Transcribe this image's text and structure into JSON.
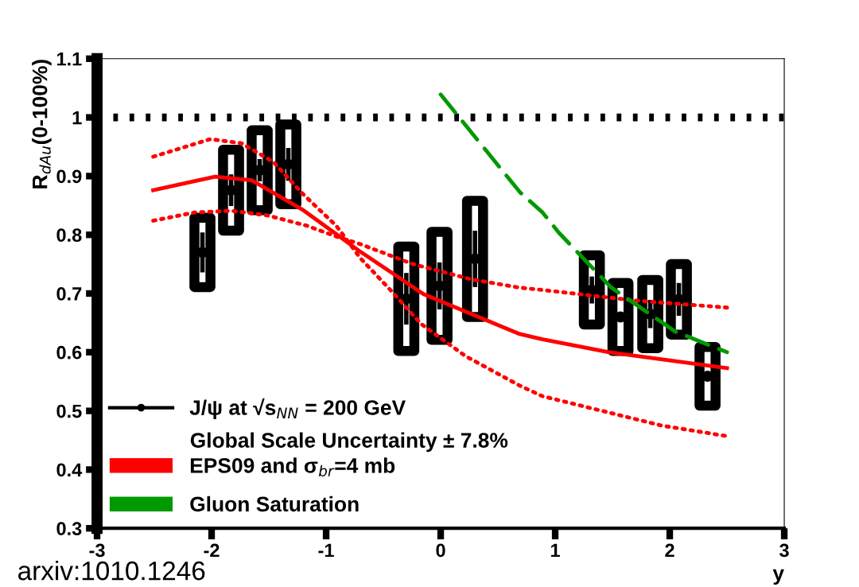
{
  "chart_data": {
    "type": "scatter",
    "xlabel": "y",
    "ylabel": "R$_{dAu}$(0-100%)",
    "xlim": [
      -3,
      3
    ],
    "ylim": [
      0.3,
      1.1
    ],
    "xticks": [
      -3,
      -2,
      -1,
      0,
      1,
      2,
      3
    ],
    "yticks": [
      0.3,
      0.4,
      0.5,
      0.6,
      0.7,
      0.8,
      0.9,
      1,
      1.1
    ],
    "grid": false,
    "legend": "bottom left",
    "series": [
      {
        "type": "bar",
        "color": "#000000",
        "x": [
          -2.08,
          -1.83,
          -1.58,
          -1.33,
          -0.3,
          -0.01,
          0.3,
          1.32,
          1.57,
          1.83,
          2.08,
          2.33
        ],
        "base": [
          0.711,
          0.807,
          0.842,
          0.852,
          0.602,
          0.621,
          0.66,
          0.647,
          0.602,
          0.607,
          0.63,
          0.509
        ],
        "values": [
          0.118,
          0.138,
          0.136,
          0.136,
          0.178,
          0.184,
          0.198,
          0.118,
          0.116,
          0.116,
          0.12,
          0.1
        ]
      },
      {
        "name": "J/ψ at √s$_{NN}$ = 200 GeV",
        "color": "#000000",
        "marker": "circle",
        "x": [
          -2.08,
          -1.83,
          -1.58,
          -1.33,
          -0.3,
          -0.01,
          0.3,
          1.32,
          1.57,
          1.83,
          2.08,
          2.33
        ],
        "values": [
          0.77,
          0.876,
          0.91,
          0.92,
          0.691,
          0.713,
          0.759,
          0.706,
          0.66,
          0.665,
          0.69,
          0.559
        ],
        "errors": [
          0.034,
          0.027,
          0.019,
          0.028,
          0.044,
          0.04,
          0.048,
          0.023,
          null,
          0.024,
          0.028,
          null
        ]
      },
      {
        "type": "line",
        "name": "EPS09 and σ$_{br}$=4 mb",
        "color": "#ff0000",
        "line_style": "solid",
        "x": [
          -2.51,
          -1.97,
          -1.65,
          -1.2,
          -0.91,
          -0.7,
          -0.15,
          0.69,
          0.89,
          1.47,
          2.5
        ],
        "values": [
          0.876,
          0.899,
          0.893,
          0.842,
          0.801,
          0.771,
          0.699,
          0.631,
          0.622,
          0.6,
          0.573
        ]
      },
      {
        "type": "line",
        "color": "#ff0000",
        "line_style": "dotted",
        "x": [
          -2.51,
          -2.01,
          -1.74,
          -1.46,
          -1.2,
          -0.91,
          -0.7,
          -0.42,
          -0.17,
          0.22,
          0.69,
          0.89,
          1.93,
          2.5
        ],
        "values": [
          0.933,
          0.963,
          0.956,
          0.924,
          0.869,
          0.815,
          0.76,
          0.702,
          0.648,
          0.593,
          0.543,
          0.525,
          0.475,
          0.457
        ]
      },
      {
        "type": "line",
        "color": "#ff0000",
        "line_style": "dotted",
        "x": [
          -2.51,
          -2.15,
          -1.83,
          -1.51,
          -1.16,
          -0.91,
          -0.7,
          -0.24,
          0.27,
          0.69,
          0.89,
          1.7,
          2.5
        ],
        "values": [
          0.824,
          0.838,
          0.841,
          0.833,
          0.815,
          0.797,
          0.784,
          0.75,
          0.724,
          0.71,
          0.706,
          0.688,
          0.676
        ]
      },
      {
        "type": "line",
        "name": "Gluon Saturation",
        "color": "#009900",
        "line_style": "dashed",
        "x": [
          0,
          0.69,
          0.89,
          1.03,
          1.49,
          2.05,
          2.5
        ],
        "values": [
          1.039,
          0.873,
          0.838,
          0.804,
          0.71,
          0.635,
          0.6
        ]
      }
    ],
    "ref_lines": [
      {
        "axis": "y",
        "value": 1,
        "color": "#000000",
        "line_style": "dotted"
      }
    ],
    "annotations": [
      "Global Scale Uncertainty ± 7.8%",
      "arxiv:1010.1246"
    ]
  }
}
